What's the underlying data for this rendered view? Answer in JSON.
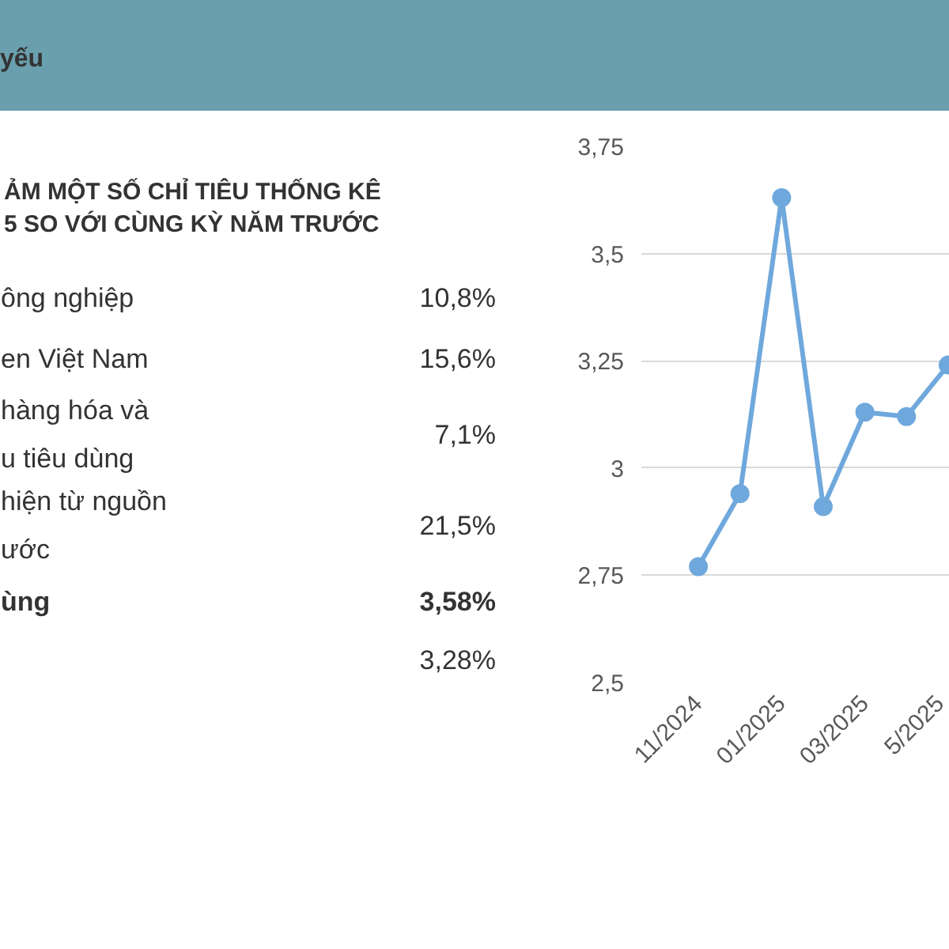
{
  "chart_data": [
    {
      "type": "other",
      "title": "yếu",
      "subtitle": "ẢM MỘT SỐ CHỈ TIÊU THỐNG KÊ\n5 SO VỚI CÙNG KỲ NĂM TRƯỚC",
      "annotations": [
        "ông nghiệp",
        "10,8%",
        "en Việt Nam",
        "15,6%",
        "hàng hóa và\nu tiêu dùng",
        "7,1%",
        "hiện từ nguồn\nước",
        "21,5%",
        "ùng",
        "3,58%",
        "3,28%"
      ]
    },
    {
      "type": "line",
      "categories": [
        "11/2024",
        null,
        "01/2025",
        null,
        "03/2025",
        null,
        "5/2025"
      ],
      "series": [
        {
          "color": "#6fa8dc",
          "values": [
            2.77,
            2.94,
            3.63,
            2.91,
            3.13,
            3.12,
            3.24
          ]
        }
      ],
      "ylim": [
        2.5,
        3.75
      ],
      "yticks": [
        {
          "value": 2.5,
          "label": "2,5"
        },
        {
          "value": 2.75,
          "label": "2,75"
        },
        3,
        {
          "value": 3.25,
          "label": "3,25"
        },
        {
          "value": 3.5,
          "label": "3,5"
        },
        {
          "value": 3.75,
          "label": "3,75"
        }
      ],
      "grid": "y",
      "marker": "circle",
      "line_style": "solid"
    }
  ]
}
